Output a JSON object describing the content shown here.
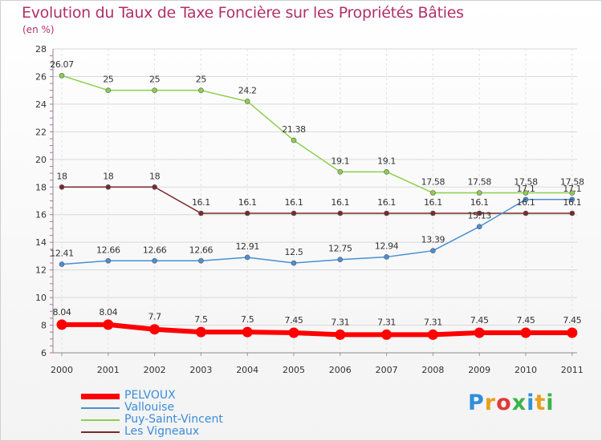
{
  "title": "Evolution du Taux de Taxe Foncière sur les Propriétés Bâties",
  "unit": "(en %)",
  "logo": {
    "text": "Proxiti",
    "letters": [
      "P",
      "r",
      "o",
      "x",
      "i",
      "t",
      "i"
    ],
    "colors": [
      "#2f8fd8",
      "#e8a020",
      "#e03a3a",
      "#3bb34a",
      "#2f8fd8",
      "#e8a020",
      "#3bb34a"
    ]
  },
  "chart_data": {
    "type": "line",
    "title": "Evolution du Taux de Taxe Foncière sur les Propriétés Bâties",
    "ylabel": "(en %)",
    "xlabel": "",
    "x": [
      "2000",
      "2001",
      "2002",
      "2003",
      "2004",
      "2005",
      "2006",
      "2007",
      "2008",
      "2009",
      "2010",
      "2011"
    ],
    "ylim": [
      6,
      28
    ],
    "yticks": [
      "6",
      "8",
      "10",
      "12",
      "14",
      "16",
      "18",
      "20",
      "22",
      "24",
      "26",
      "28"
    ],
    "grid": true,
    "legend_position": "bottom-left",
    "series": [
      {
        "name": "PELVOUX",
        "color": "#ff0000",
        "values": [
          8.04,
          8.04,
          7.7,
          7.5,
          7.5,
          7.45,
          7.31,
          7.31,
          7.31,
          7.45,
          7.45,
          7.45
        ],
        "labels": [
          "8.04",
          "8.04",
          "7.7",
          "7.5",
          "7.5",
          "7.45",
          "7.31",
          "7.31",
          "7.31",
          "7.45",
          "7.45",
          "7.45"
        ]
      },
      {
        "name": "Vallouise",
        "color": "#4a90d0",
        "values": [
          12.41,
          12.66,
          12.66,
          12.66,
          12.91,
          12.5,
          12.75,
          12.94,
          13.39,
          15.13,
          17.1,
          17.1
        ],
        "labels": [
          "12.41",
          "12.66",
          "12.66",
          "12.66",
          "12.91",
          "12.5",
          "12.75",
          "12.94",
          "13.39",
          "15.13",
          "17.1",
          "17.1"
        ]
      },
      {
        "name": "Puy-Saint-Vincent",
        "color": "#8cd04a",
        "values": [
          26.07,
          25,
          25,
          25,
          24.2,
          21.38,
          19.1,
          19.1,
          17.58,
          17.58,
          17.58,
          17.58
        ],
        "labels": [
          "26.07",
          "25",
          "25",
          "25",
          "24.2",
          "21.38",
          "19.1",
          "19.1",
          "17.58",
          "17.58",
          "17.58",
          "17.58"
        ]
      },
      {
        "name": "Les Vigneaux",
        "color": "#7a2a2a",
        "values": [
          18,
          18,
          18,
          16.1,
          16.1,
          16.1,
          16.1,
          16.1,
          16.1,
          16.1,
          16.1,
          16.1
        ],
        "labels": [
          "18",
          "18",
          "18",
          "16.1",
          "16.1",
          "16.1",
          "16.1",
          "16.1",
          "16.1",
          "16.1",
          "16.1",
          "16.1"
        ]
      }
    ]
  }
}
